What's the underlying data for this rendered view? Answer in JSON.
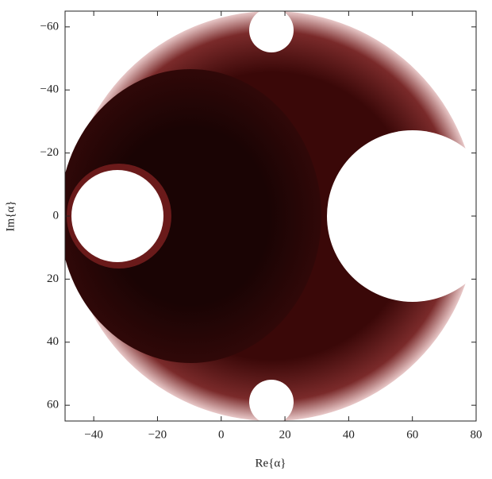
{
  "chart_data": {
    "type": "image",
    "x_label": "Re{α}",
    "y_label": "Im{α}",
    "xlim": [
      -49,
      80
    ],
    "ylim": [
      -65,
      65
    ],
    "y_inverted": true,
    "xticks": [
      {
        "value": -40,
        "label": "−40"
      },
      {
        "value": -20,
        "label": "−20"
      },
      0,
      20,
      40,
      60,
      80
    ],
    "yticks": [
      {
        "value": -60,
        "label": "−60"
      },
      {
        "value": -40,
        "label": "−40"
      },
      {
        "value": -20,
        "label": "−20"
      },
      0,
      20,
      40,
      60
    ]
  }
}
